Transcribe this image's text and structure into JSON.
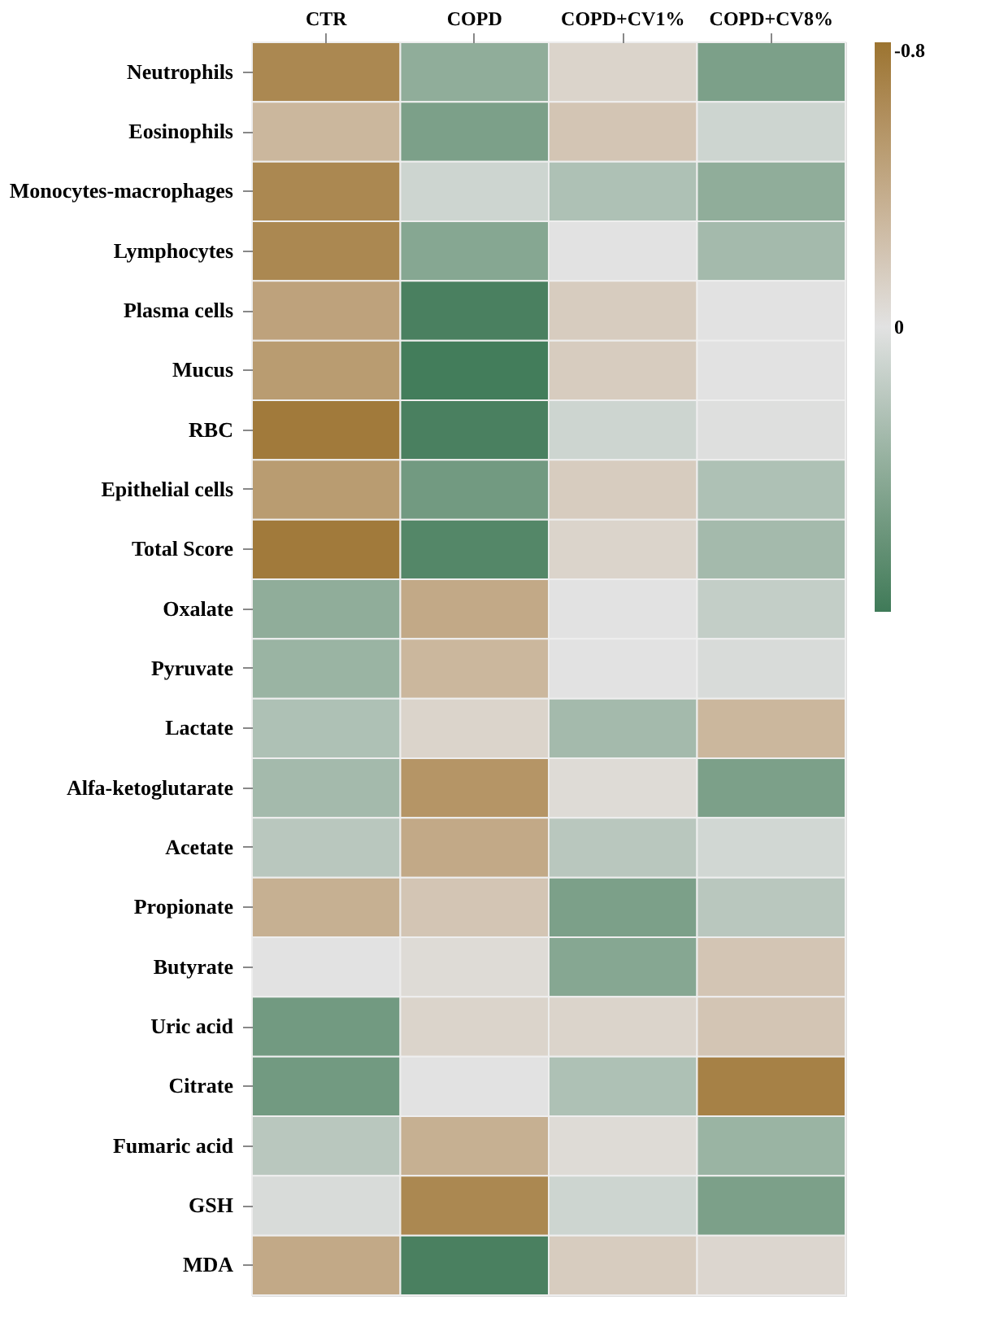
{
  "chart_data": {
    "type": "heatmap",
    "categories": [
      "CTR",
      "COPD",
      "COPD+CV1%",
      "COPD+CV8%"
    ],
    "y_categories": [
      "Neutrophils",
      "Eosinophils",
      "Monocytes-macrophages",
      "Lymphocytes",
      "Plasma cells",
      "Mucus",
      "RBC",
      "Epithelial cells",
      "Total Score",
      "Oxalate",
      "Pyruvate",
      "Lactate",
      "Alfa-ketoglutarate",
      "Acetate",
      "Propionate",
      "Butyrate",
      "Uric acid",
      "Citrate",
      "Fumaric acid",
      "GSH",
      "MDA"
    ],
    "cells": [
      [
        -0.65,
        0.4,
        -0.1,
        0.5
      ],
      [
        -0.3,
        0.5,
        -0.2,
        0.1
      ],
      [
        -0.65,
        0.1,
        0.25,
        0.4
      ],
      [
        -0.65,
        0.45,
        0.0,
        0.3
      ],
      [
        -0.45,
        0.75,
        -0.15,
        0.0
      ],
      [
        -0.5,
        0.78,
        -0.15,
        0.0
      ],
      [
        -0.75,
        0.75,
        0.1,
        0.02
      ],
      [
        -0.5,
        0.55,
        -0.15,
        0.25
      ],
      [
        -0.75,
        0.7,
        -0.1,
        0.3
      ],
      [
        0.4,
        -0.4,
        0.0,
        0.15
      ],
      [
        0.35,
        -0.3,
        0.0,
        0.05
      ],
      [
        0.25,
        -0.1,
        0.3,
        -0.3
      ],
      [
        0.3,
        -0.55,
        -0.05,
        0.5
      ],
      [
        0.2,
        -0.4,
        0.2,
        0.08
      ],
      [
        -0.35,
        -0.2,
        0.5,
        0.2
      ],
      [
        0.0,
        -0.05,
        0.45,
        -0.2
      ],
      [
        0.55,
        -0.1,
        -0.1,
        -0.2
      ],
      [
        0.55,
        0.0,
        0.25,
        -0.7
      ],
      [
        0.2,
        -0.35,
        -0.05,
        0.35
      ],
      [
        0.05,
        -0.65,
        0.1,
        0.5
      ],
      [
        -0.4,
        0.75,
        -0.15,
        -0.08
      ]
    ],
    "clim": [
      -0.8,
      0.8
    ],
    "cticks": [
      -0.8,
      0
    ]
  }
}
